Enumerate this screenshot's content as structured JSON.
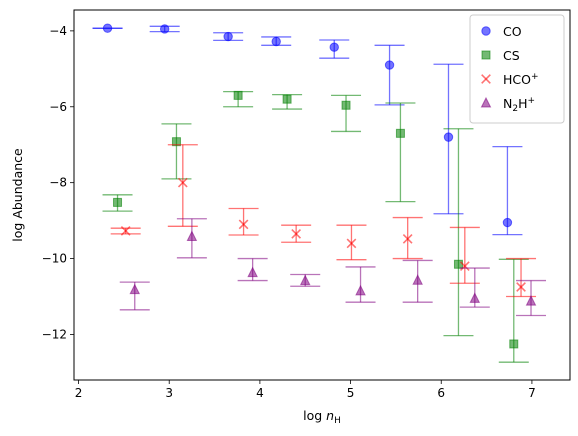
{
  "chart_data": {
    "type": "scatter",
    "xlabel": "log n",
    "xlabel_sub": "H",
    "ylabel": "log Abundance",
    "xlim": [
      1.95,
      7.42
    ],
    "ylim": [
      -13.2,
      -3.45
    ],
    "xticks": [
      2,
      3,
      4,
      5,
      6,
      7
    ],
    "yticks": [
      -12,
      -10,
      -8,
      -6,
      -4
    ],
    "legend": "top-right",
    "series": [
      {
        "name": "CO",
        "label_base": "CO",
        "label_sup": "",
        "label_sub": "",
        "label_sup2": "",
        "marker": "circle",
        "color": "#0000ff",
        "points": [
          {
            "x": 2.32,
            "y": -3.93,
            "lo": -3.93,
            "hi": -3.93
          },
          {
            "x": 2.95,
            "y": -3.95,
            "lo": -4.02,
            "hi": -3.88
          },
          {
            "x": 3.65,
            "y": -4.15,
            "lo": -4.25,
            "hi": -4.05
          },
          {
            "x": 4.18,
            "y": -4.28,
            "lo": -4.38,
            "hi": -4.16
          },
          {
            "x": 4.82,
            "y": -4.43,
            "lo": -4.72,
            "hi": -4.24
          },
          {
            "x": 5.43,
            "y": -4.9,
            "lo": -5.95,
            "hi": -4.38
          },
          {
            "x": 6.08,
            "y": -6.8,
            "lo": -8.82,
            "hi": -4.88
          },
          {
            "x": 6.73,
            "y": -9.05,
            "lo": -9.37,
            "hi": -7.05
          }
        ]
      },
      {
        "name": "CS",
        "label_base": "CS",
        "label_sup": "",
        "label_sub": "",
        "label_sup2": "",
        "marker": "square",
        "color": "#008000",
        "points": [
          {
            "x": 2.43,
            "y": -8.52,
            "lo": -8.75,
            "hi": -8.32
          },
          {
            "x": 3.08,
            "y": -6.92,
            "lo": -7.9,
            "hi": -6.45
          },
          {
            "x": 3.76,
            "y": -5.7,
            "lo": -6.0,
            "hi": -5.6
          },
          {
            "x": 4.3,
            "y": -5.8,
            "lo": -6.06,
            "hi": -5.68
          },
          {
            "x": 4.95,
            "y": -5.96,
            "lo": -6.65,
            "hi": -5.7
          },
          {
            "x": 5.55,
            "y": -6.7,
            "lo": -8.5,
            "hi": -5.9
          },
          {
            "x": 6.19,
            "y": -10.15,
            "lo": -12.03,
            "hi": -6.58
          },
          {
            "x": 6.8,
            "y": -12.25,
            "lo": -12.73,
            "hi": -10.02
          }
        ]
      },
      {
        "name": "HCO+",
        "label_base": "HCO",
        "label_sup": "+",
        "label_sub": "",
        "label_sup2": "",
        "marker": "x",
        "color": "#ff0000",
        "points": [
          {
            "x": 2.52,
            "y": -9.27,
            "lo": -9.35,
            "hi": -9.2
          },
          {
            "x": 3.15,
            "y": -8.0,
            "lo": -9.15,
            "hi": -7.0
          },
          {
            "x": 3.82,
            "y": -9.1,
            "lo": -9.38,
            "hi": -8.68
          },
          {
            "x": 4.4,
            "y": -9.35,
            "lo": -9.57,
            "hi": -9.12
          },
          {
            "x": 5.01,
            "y": -9.6,
            "lo": -10.03,
            "hi": -9.12
          },
          {
            "x": 5.63,
            "y": -9.48,
            "lo": -10.0,
            "hi": -8.92
          },
          {
            "x": 6.26,
            "y": -10.2,
            "lo": -10.65,
            "hi": -9.18
          },
          {
            "x": 6.88,
            "y": -10.75,
            "lo": -11.0,
            "hi": -10.0
          }
        ]
      },
      {
        "name": "N2H+",
        "label_base": "N",
        "label_sup": "",
        "label_sub": "2",
        "label_sup2": "H+",
        "marker": "triangle",
        "color": "#800080",
        "points": [
          {
            "x": 2.62,
            "y": -10.82,
            "lo": -11.35,
            "hi": -10.62
          },
          {
            "x": 3.25,
            "y": -9.42,
            "lo": -9.98,
            "hi": -8.95
          },
          {
            "x": 3.92,
            "y": -10.37,
            "lo": -10.58,
            "hi": -10.0
          },
          {
            "x": 4.5,
            "y": -10.58,
            "lo": -10.73,
            "hi": -10.42
          },
          {
            "x": 5.11,
            "y": -10.85,
            "lo": -11.15,
            "hi": -10.22
          },
          {
            "x": 5.74,
            "y": -10.57,
            "lo": -11.15,
            "hi": -10.05
          },
          {
            "x": 6.37,
            "y": -11.05,
            "lo": -11.28,
            "hi": -10.25
          },
          {
            "x": 6.99,
            "y": -11.12,
            "lo": -11.5,
            "hi": -10.58
          }
        ]
      }
    ]
  }
}
